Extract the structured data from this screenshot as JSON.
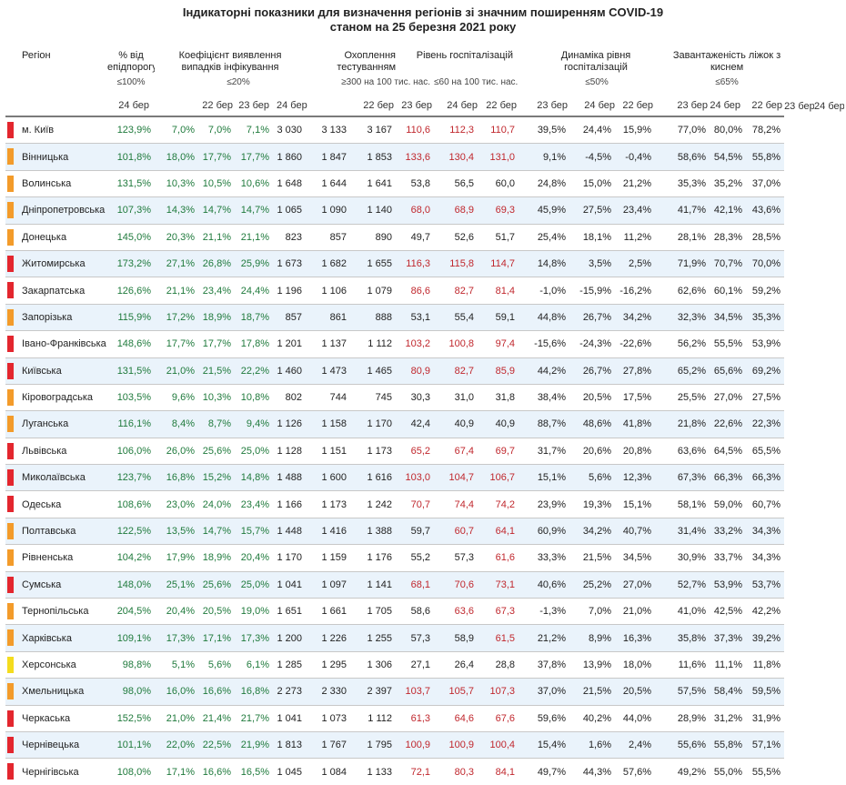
{
  "title": {
    "line1": "Індикаторні показники для визначення регіонів зі значним поширенням COVID-19",
    "line2": "станом на 25 березня 2021 року"
  },
  "headers": {
    "region": "Регіон",
    "epi": "% від епідпорогу",
    "epi_thr": "≤100%",
    "coef": "Коефіцієнт виявлення випадків інфікування",
    "coef_thr": "≤20%",
    "test": "Охоплення тестуванням",
    "test_thr": "≥300 на 100 тис. нас.",
    "hosp": "Рівень госпіталізацій",
    "hosp_thr": "≤60 на 100 тис. нас.",
    "dyn": "Динаміка рівня госпіталізацій",
    "dyn_thr": "≤50%",
    "load": "Завантаженість ліжок з киснем",
    "load_thr": "≤65%",
    "d22": "22 бер",
    "d23": "23 бер",
    "d24": "24 бер"
  },
  "colors": {
    "red": "#e3262e",
    "orange": "#f39b2a",
    "yellow": "#f4dc1e",
    "green_text": "#1f7a3c",
    "red_text": "#c0272d"
  },
  "rows": [
    {
      "region": "м. Київ",
      "marker": "red",
      "epi": "123,9%",
      "coef": [
        "7,0%",
        "7,0%",
        "7,1%"
      ],
      "test": [
        "3 030",
        "3 133",
        "3 167"
      ],
      "hosp": [
        "110,6",
        "112,3",
        "110,7"
      ],
      "dyn": [
        "39,5%",
        "24,4%",
        "15,9%"
      ],
      "load": [
        "77,0%",
        "80,0%",
        "78,2%"
      ]
    },
    {
      "region": "Вінницька",
      "marker": "orange",
      "epi": "101,8%",
      "coef": [
        "18,0%",
        "17,7%",
        "17,7%"
      ],
      "test": [
        "1 860",
        "1 847",
        "1 853"
      ],
      "hosp": [
        "133,6",
        "130,4",
        "131,0"
      ],
      "dyn": [
        "9,1%",
        "-4,5%",
        "-0,4%"
      ],
      "load": [
        "58,6%",
        "54,5%",
        "55,8%"
      ]
    },
    {
      "region": "Волинська",
      "marker": "orange",
      "epi": "131,5%",
      "coef": [
        "10,3%",
        "10,5%",
        "10,6%"
      ],
      "test": [
        "1 648",
        "1 644",
        "1 641"
      ],
      "hosp": [
        "53,8",
        "56,5",
        "60,0"
      ],
      "dyn": [
        "24,8%",
        "15,0%",
        "21,2%"
      ],
      "load": [
        "35,3%",
        "35,2%",
        "37,0%"
      ]
    },
    {
      "region": "Дніпропетровська",
      "marker": "orange",
      "epi": "107,3%",
      "coef": [
        "14,3%",
        "14,7%",
        "14,7%"
      ],
      "test": [
        "1 065",
        "1 090",
        "1 140"
      ],
      "hosp": [
        "68,0",
        "68,9",
        "69,3"
      ],
      "dyn": [
        "45,9%",
        "27,5%",
        "23,4%"
      ],
      "load": [
        "41,7%",
        "42,1%",
        "43,6%"
      ]
    },
    {
      "region": "Донецька",
      "marker": "orange",
      "epi": "145,0%",
      "coef": [
        "20,3%",
        "21,1%",
        "21,1%"
      ],
      "test": [
        "823",
        "857",
        "890"
      ],
      "hosp": [
        "49,7",
        "52,6",
        "51,7"
      ],
      "dyn": [
        "25,4%",
        "18,1%",
        "11,2%"
      ],
      "load": [
        "28,1%",
        "28,3%",
        "28,5%"
      ]
    },
    {
      "region": "Житомирська",
      "marker": "red",
      "epi": "173,2%",
      "coef": [
        "27,1%",
        "26,8%",
        "25,9%"
      ],
      "test": [
        "1 673",
        "1 682",
        "1 655"
      ],
      "hosp": [
        "116,3",
        "115,8",
        "114,7"
      ],
      "dyn": [
        "14,8%",
        "3,5%",
        "2,5%"
      ],
      "load": [
        "71,9%",
        "70,7%",
        "70,0%"
      ]
    },
    {
      "region": "Закарпатська",
      "marker": "red",
      "epi": "126,6%",
      "coef": [
        "21,1%",
        "23,4%",
        "24,4%"
      ],
      "test": [
        "1 196",
        "1 106",
        "1 079"
      ],
      "hosp": [
        "86,6",
        "82,7",
        "81,4"
      ],
      "dyn": [
        "-1,0%",
        "-15,9%",
        "-16,2%"
      ],
      "load": [
        "62,6%",
        "60,1%",
        "59,2%"
      ]
    },
    {
      "region": "Запорізька",
      "marker": "orange",
      "epi": "115,9%",
      "coef": [
        "17,2%",
        "18,9%",
        "18,7%"
      ],
      "test": [
        "857",
        "861",
        "888"
      ],
      "hosp": [
        "53,1",
        "55,4",
        "59,1"
      ],
      "dyn": [
        "44,8%",
        "26,7%",
        "34,2%"
      ],
      "load": [
        "32,3%",
        "34,5%",
        "35,3%"
      ]
    },
    {
      "region": "Івано-Франківська",
      "marker": "red",
      "epi": "148,6%",
      "coef": [
        "17,7%",
        "17,7%",
        "17,8%"
      ],
      "test": [
        "1 201",
        "1 137",
        "1 112"
      ],
      "hosp": [
        "103,2",
        "100,8",
        "97,4"
      ],
      "dyn": [
        "-15,6%",
        "-24,3%",
        "-22,6%"
      ],
      "load": [
        "56,2%",
        "55,5%",
        "53,9%"
      ]
    },
    {
      "region": "Київська",
      "marker": "red",
      "epi": "131,5%",
      "coef": [
        "21,0%",
        "21,5%",
        "22,2%"
      ],
      "test": [
        "1 460",
        "1 473",
        "1 465"
      ],
      "hosp": [
        "80,9",
        "82,7",
        "85,9"
      ],
      "dyn": [
        "44,2%",
        "26,7%",
        "27,8%"
      ],
      "load": [
        "65,2%",
        "65,6%",
        "69,2%"
      ]
    },
    {
      "region": "Кіровоградська",
      "marker": "orange",
      "epi": "103,5%",
      "coef": [
        "9,6%",
        "10,3%",
        "10,8%"
      ],
      "test": [
        "802",
        "744",
        "745"
      ],
      "hosp": [
        "30,3",
        "31,0",
        "31,8"
      ],
      "dyn": [
        "38,4%",
        "20,5%",
        "17,5%"
      ],
      "load": [
        "25,5%",
        "27,0%",
        "27,5%"
      ]
    },
    {
      "region": "Луганська",
      "marker": "orange",
      "epi": "116,1%",
      "coef": [
        "8,4%",
        "8,7%",
        "9,4%"
      ],
      "test": [
        "1 126",
        "1 158",
        "1 170"
      ],
      "hosp": [
        "42,4",
        "40,9",
        "40,9"
      ],
      "dyn": [
        "88,7%",
        "48,6%",
        "41,8%"
      ],
      "load": [
        "21,8%",
        "22,6%",
        "22,3%"
      ]
    },
    {
      "region": "Львівська",
      "marker": "red",
      "epi": "106,0%",
      "coef": [
        "26,0%",
        "25,6%",
        "25,0%"
      ],
      "test": [
        "1 128",
        "1 151",
        "1 173"
      ],
      "hosp": [
        "65,2",
        "67,4",
        "69,7"
      ],
      "dyn": [
        "31,7%",
        "20,6%",
        "20,8%"
      ],
      "load": [
        "63,6%",
        "64,5%",
        "65,5%"
      ]
    },
    {
      "region": "Миколаївська",
      "marker": "red",
      "epi": "123,7%",
      "coef": [
        "16,8%",
        "15,2%",
        "14,8%"
      ],
      "test": [
        "1 488",
        "1 600",
        "1 616"
      ],
      "hosp": [
        "103,0",
        "104,7",
        "106,7"
      ],
      "dyn": [
        "15,1%",
        "5,6%",
        "12,3%"
      ],
      "load": [
        "67,3%",
        "66,3%",
        "66,3%"
      ]
    },
    {
      "region": "Одеська",
      "marker": "red",
      "epi": "108,6%",
      "coef": [
        "23,0%",
        "24,0%",
        "23,4%"
      ],
      "test": [
        "1 166",
        "1 173",
        "1 242"
      ],
      "hosp": [
        "70,7",
        "74,4",
        "74,2"
      ],
      "dyn": [
        "23,9%",
        "19,3%",
        "15,1%"
      ],
      "load": [
        "58,1%",
        "59,0%",
        "60,7%"
      ]
    },
    {
      "region": "Полтавська",
      "marker": "orange",
      "epi": "122,5%",
      "coef": [
        "13,5%",
        "14,7%",
        "15,7%"
      ],
      "test": [
        "1 448",
        "1 416",
        "1 388"
      ],
      "hosp": [
        "59,7",
        "60,7",
        "64,1"
      ],
      "dyn": [
        "60,9%",
        "34,2%",
        "40,7%"
      ],
      "load": [
        "31,4%",
        "33,2%",
        "34,3%"
      ]
    },
    {
      "region": "Рівненська",
      "marker": "orange",
      "epi": "104,2%",
      "coef": [
        "17,9%",
        "18,9%",
        "20,4%"
      ],
      "test": [
        "1 170",
        "1 159",
        "1 176"
      ],
      "hosp": [
        "55,2",
        "57,3",
        "61,6"
      ],
      "dyn": [
        "33,3%",
        "21,5%",
        "34,5%"
      ],
      "load": [
        "30,9%",
        "33,7%",
        "34,3%"
      ]
    },
    {
      "region": "Сумська",
      "marker": "red",
      "epi": "148,0%",
      "coef": [
        "25,1%",
        "25,6%",
        "25,0%"
      ],
      "test": [
        "1 041",
        "1 097",
        "1 141"
      ],
      "hosp": [
        "68,1",
        "70,6",
        "73,1"
      ],
      "dyn": [
        "40,6%",
        "25,2%",
        "27,0%"
      ],
      "load": [
        "52,7%",
        "53,9%",
        "53,7%"
      ]
    },
    {
      "region": "Тернопільська",
      "marker": "orange",
      "epi": "204,5%",
      "coef": [
        "20,4%",
        "20,5%",
        "19,0%"
      ],
      "test": [
        "1 651",
        "1 661",
        "1 705"
      ],
      "hosp": [
        "58,6",
        "63,6",
        "67,3"
      ],
      "dyn": [
        "-1,3%",
        "7,0%",
        "21,0%"
      ],
      "load": [
        "41,0%",
        "42,5%",
        "42,2%"
      ]
    },
    {
      "region": "Харківська",
      "marker": "orange",
      "epi": "109,1%",
      "coef": [
        "17,3%",
        "17,1%",
        "17,3%"
      ],
      "test": [
        "1 200",
        "1 226",
        "1 255"
      ],
      "hosp": [
        "57,3",
        "58,9",
        "61,5"
      ],
      "dyn": [
        "21,2%",
        "8,9%",
        "16,3%"
      ],
      "load": [
        "35,8%",
        "37,3%",
        "39,2%"
      ]
    },
    {
      "region": "Херсонська",
      "marker": "yellow",
      "epi": "98,8%",
      "coef": [
        "5,1%",
        "5,6%",
        "6,1%"
      ],
      "test": [
        "1 285",
        "1 295",
        "1 306"
      ],
      "hosp": [
        "27,1",
        "26,4",
        "28,8"
      ],
      "dyn": [
        "37,8%",
        "13,9%",
        "18,0%"
      ],
      "load": [
        "11,6%",
        "11,1%",
        "11,8%"
      ]
    },
    {
      "region": "Хмельницька",
      "marker": "orange",
      "epi": "98,0%",
      "coef": [
        "16,0%",
        "16,6%",
        "16,8%"
      ],
      "test": [
        "2 273",
        "2 330",
        "2 397"
      ],
      "hosp": [
        "103,7",
        "105,7",
        "107,3"
      ],
      "dyn": [
        "37,0%",
        "21,5%",
        "20,5%"
      ],
      "load": [
        "57,5%",
        "58,4%",
        "59,5%"
      ]
    },
    {
      "region": "Черкаська",
      "marker": "red",
      "epi": "152,5%",
      "coef": [
        "21,0%",
        "21,4%",
        "21,7%"
      ],
      "test": [
        "1 041",
        "1 073",
        "1 112"
      ],
      "hosp": [
        "61,3",
        "64,6",
        "67,6"
      ],
      "dyn": [
        "59,6%",
        "40,2%",
        "44,0%"
      ],
      "load": [
        "28,9%",
        "31,2%",
        "31,9%"
      ]
    },
    {
      "region": "Чернівецька",
      "marker": "red",
      "epi": "101,1%",
      "coef": [
        "22,0%",
        "22,5%",
        "21,9%"
      ],
      "test": [
        "1 813",
        "1 767",
        "1 795"
      ],
      "hosp": [
        "100,9",
        "100,9",
        "100,4"
      ],
      "dyn": [
        "15,4%",
        "1,6%",
        "2,4%"
      ],
      "load": [
        "55,6%",
        "55,8%",
        "57,1%"
      ]
    },
    {
      "region": "Чернігівська",
      "marker": "red",
      "epi": "108,0%",
      "coef": [
        "17,1%",
        "16,6%",
        "16,5%"
      ],
      "test": [
        "1 045",
        "1 084",
        "1 133"
      ],
      "hosp": [
        "72,1",
        "80,3",
        "84,1"
      ],
      "dyn": [
        "49,7%",
        "44,3%",
        "57,6%"
      ],
      "load": [
        "49,2%",
        "55,0%",
        "55,5%"
      ]
    }
  ]
}
